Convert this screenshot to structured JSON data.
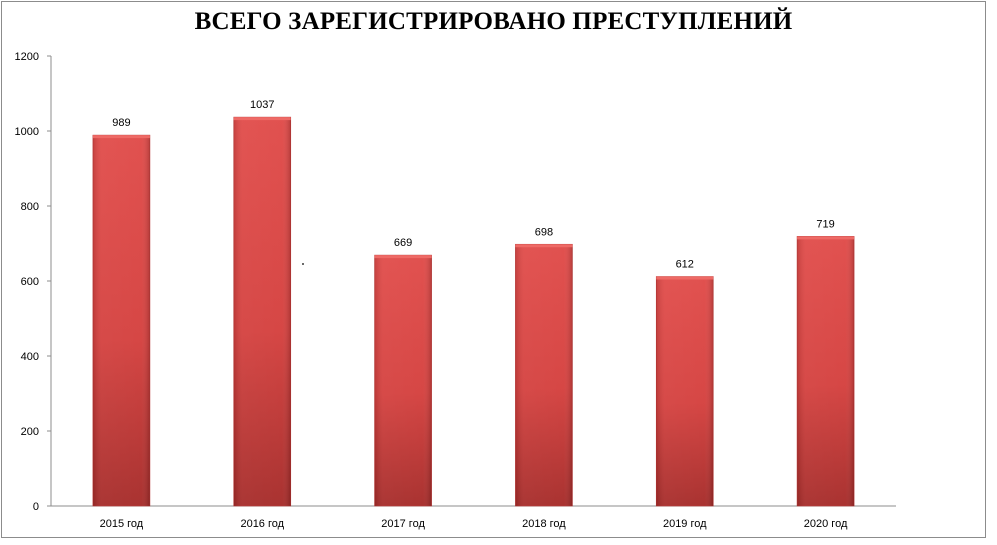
{
  "chart_data": {
    "type": "bar",
    "title": "ВСЕГО ЗАРЕГИСТРИРОВАНО ПРЕСТУПЛЕНИЙ",
    "categories": [
      "2015 год",
      "2016 год",
      "2017 год",
      "2018 год",
      "2019 год",
      "2020 год"
    ],
    "values": [
      989,
      1037,
      669,
      698,
      612,
      719
    ],
    "data_labels": [
      "989",
      "1037",
      "669",
      "698",
      "612",
      "719"
    ],
    "ylim": [
      0,
      1200
    ],
    "yticks": [
      0,
      200,
      400,
      600,
      800,
      1000,
      1200
    ],
    "grid": false,
    "legend": "none",
    "bar_color": "#d94240",
    "bar_color_dark": "#a52a28"
  }
}
